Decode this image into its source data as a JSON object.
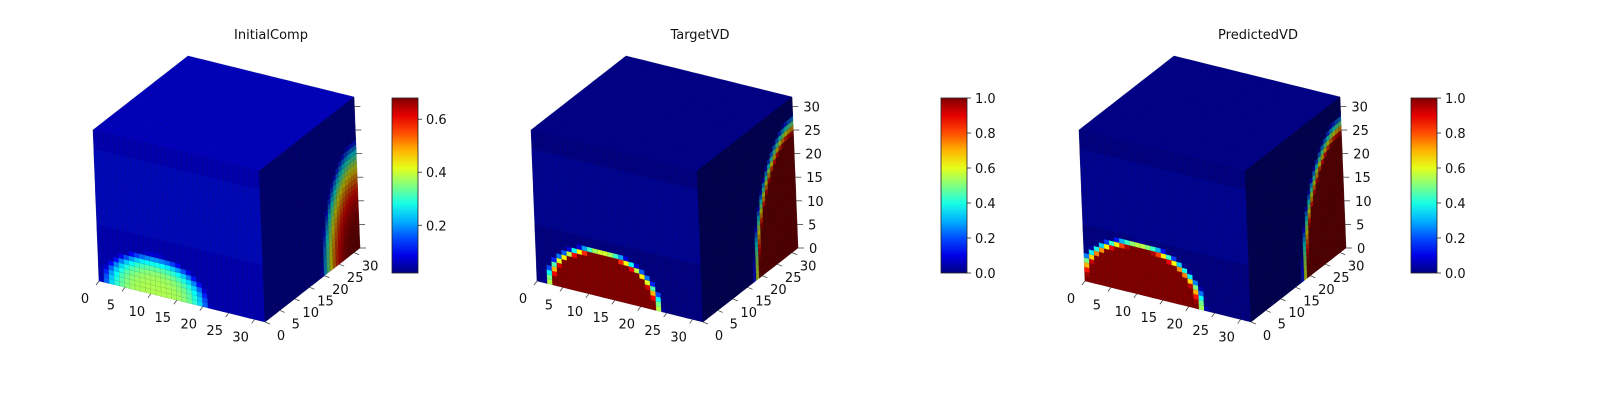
{
  "chart_data": [
    {
      "type": "heatmap",
      "subtype": "3d-voxel-volume",
      "title": "InitialComp",
      "x_ticks": [
        "0",
        "5",
        "10",
        "15",
        "20",
        "25",
        "30"
      ],
      "y_ticks": [
        "0",
        "5",
        "10",
        "15",
        "20",
        "25",
        "30"
      ],
      "z_ticks": [],
      "xlim": [
        0,
        32
      ],
      "ylim": [
        0,
        32
      ],
      "zlim": [
        0,
        32
      ],
      "colorbar": {
        "ticks": [
          "0.2",
          "0.4",
          "0.6"
        ],
        "range": [
          0.02,
          0.68
        ],
        "colormap": "jet"
      },
      "value_field": {
        "background": 0.05,
        "front_bump": {
          "peak": 0.38,
          "center_x": 11,
          "half_width_x": 11,
          "height_z": 9,
          "profile": "smooth"
        },
        "right_face_bump": {
          "peak": 0.68,
          "center_y": 31,
          "half_width_y": 12,
          "height_z": 24,
          "profile": "smooth"
        },
        "interior_glow": 0.12
      }
    },
    {
      "type": "heatmap",
      "subtype": "3d-voxel-volume",
      "title": "TargetVD",
      "x_ticks": [
        "0",
        "5",
        "10",
        "15",
        "20",
        "25",
        "30"
      ],
      "y_ticks": [
        "0",
        "5",
        "10",
        "15",
        "20",
        "25",
        "30"
      ],
      "z_ticks": [
        "0",
        "5",
        "10",
        "15",
        "20",
        "25",
        "30"
      ],
      "xlim": [
        0,
        32
      ],
      "ylim": [
        0,
        32
      ],
      "zlim": [
        0,
        32
      ],
      "colorbar": {
        "ticks": [
          "0.0",
          "0.2",
          "0.4",
          "0.6",
          "0.8",
          "1.0"
        ],
        "range": [
          0,
          1
        ],
        "colormap": "jet"
      },
      "value_field": {
        "background": 0.0,
        "front_bump": {
          "peak": 1.0,
          "center_x": 13,
          "half_width_x": 11,
          "height_z": 10,
          "profile": "sharp"
        },
        "right_face_bump": {
          "peak": 1.0,
          "center_y": 32,
          "half_width_y": 14,
          "height_z": 27,
          "profile": "sharp"
        },
        "interior_glow": 0.15
      }
    },
    {
      "type": "heatmap",
      "subtype": "3d-voxel-volume",
      "title": "PredictedVD",
      "x_ticks": [
        "0",
        "5",
        "10",
        "15",
        "20",
        "25",
        "30"
      ],
      "y_ticks": [
        "0",
        "5",
        "10",
        "15",
        "20",
        "25",
        "30"
      ],
      "z_ticks": [
        "0",
        "5",
        "10",
        "15",
        "20",
        "25",
        "30"
      ],
      "xlim": [
        0,
        32
      ],
      "ylim": [
        0,
        32
      ],
      "zlim": [
        0,
        32
      ],
      "colorbar": {
        "ticks": [
          "0.0",
          "0.2",
          "0.4",
          "0.6",
          "0.8",
          "1.0"
        ],
        "range": [
          0,
          1
        ],
        "colormap": "jet"
      },
      "value_field": {
        "background": 0.0,
        "front_bump": {
          "peak": 1.0,
          "center_x": 11,
          "half_width_x": 12,
          "height_z": 11,
          "profile": "sharp"
        },
        "right_face_bump": {
          "peak": 1.0,
          "center_y": 32,
          "half_width_y": 14,
          "height_z": 27,
          "profile": "sharp"
        },
        "interior_glow": 0.15
      }
    }
  ]
}
